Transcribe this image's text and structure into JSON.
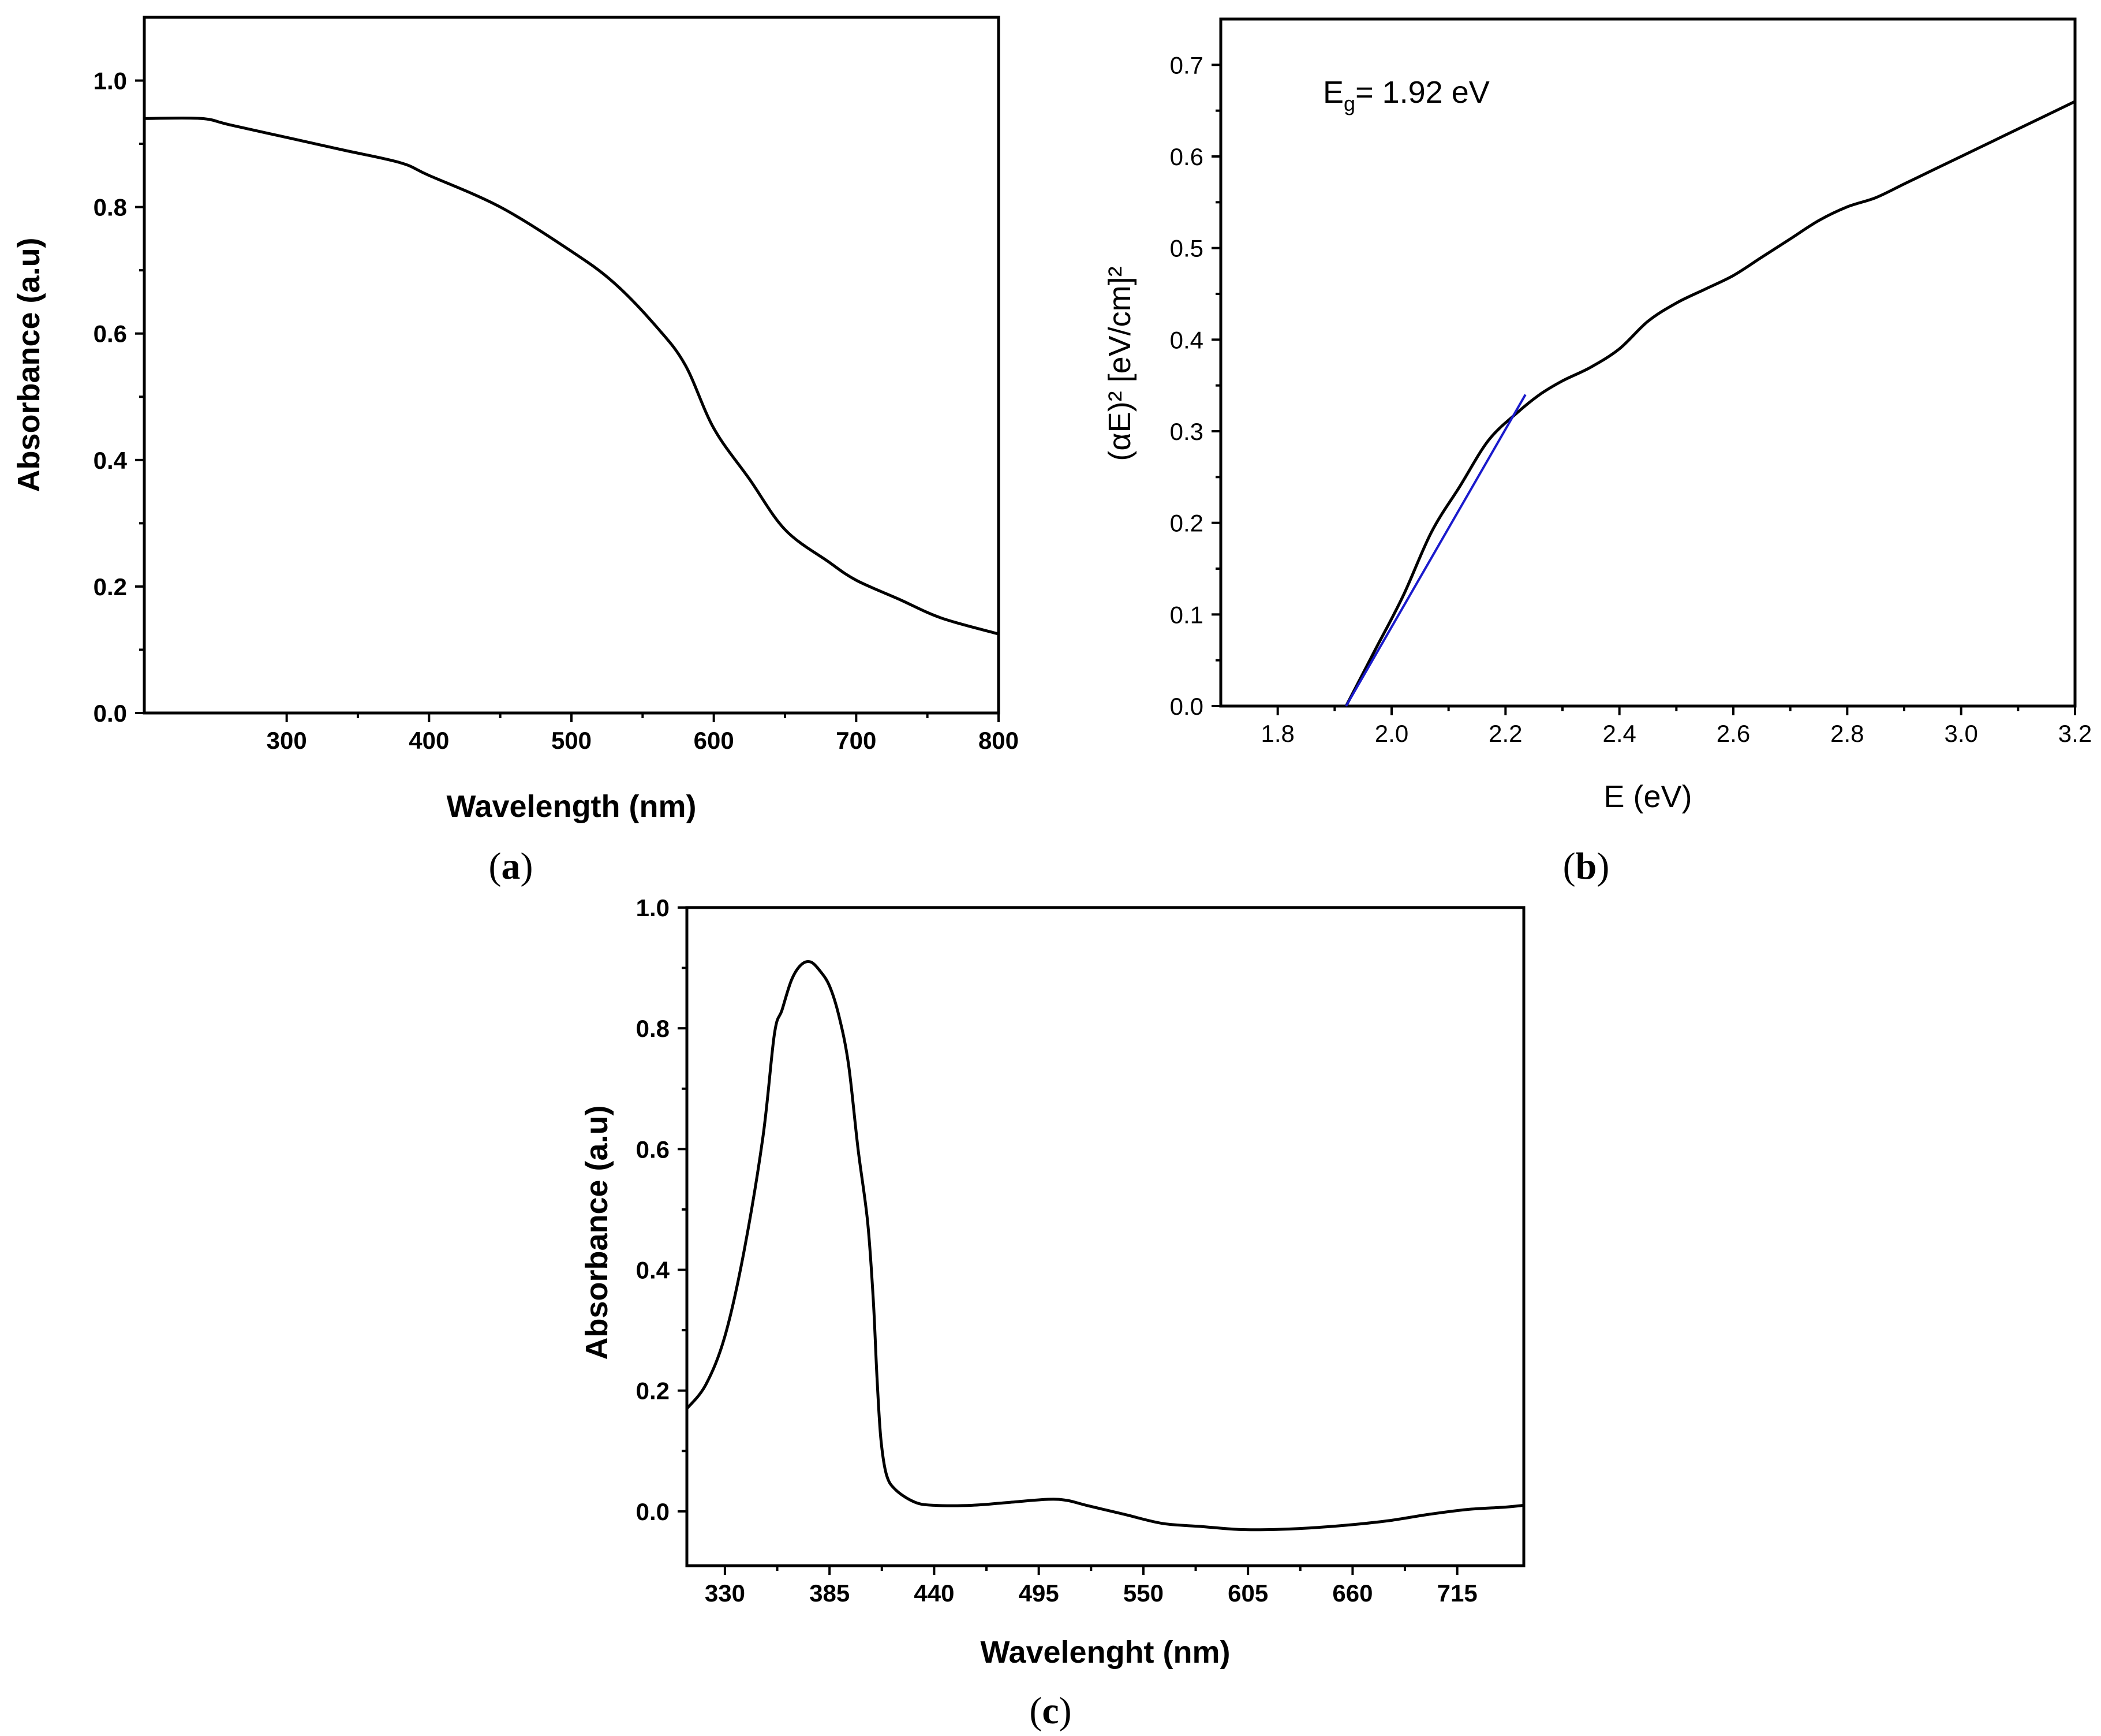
{
  "chart_data": [
    {
      "id": "a",
      "type": "line",
      "panel_label": "(a)",
      "xlabel": "Wavelength (nm)",
      "ylabel": "Absorbance (a.u)",
      "xlim": [
        200,
        800
      ],
      "ylim": [
        0.0,
        1.1
      ],
      "xticks": [
        300,
        400,
        500,
        600,
        700,
        800
      ],
      "yticks": [
        0.0,
        0.2,
        0.4,
        0.6,
        0.8,
        1.0
      ],
      "ytick_labels": [
        "0.0",
        "0.2",
        "0.4",
        "0.6",
        "0.8",
        "1.0"
      ],
      "color": "#000000",
      "x": [
        200,
        240,
        260,
        300,
        340,
        380,
        400,
        450,
        500,
        530,
        560,
        580,
        600,
        625,
        650,
        680,
        700,
        730,
        760,
        800
      ],
      "y": [
        0.94,
        0.94,
        0.93,
        0.91,
        0.89,
        0.87,
        0.85,
        0.8,
        0.73,
        0.68,
        0.61,
        0.55,
        0.45,
        0.37,
        0.29,
        0.24,
        0.21,
        0.18,
        0.15,
        0.125
      ]
    },
    {
      "id": "b",
      "type": "line",
      "panel_label": "(b)",
      "xlabel": "E (eV)",
      "ylabel": "(αE)² [eV/cm]²",
      "annotation": "Eg= 1.92 eV",
      "xlim": [
        1.7,
        3.2
      ],
      "ylim": [
        0.0,
        0.75
      ],
      "xticks": [
        1.8,
        2.0,
        2.2,
        2.4,
        2.6,
        2.8,
        3.0,
        3.2
      ],
      "xtick_labels": [
        "1.8",
        "2.0",
        "2.2",
        "2.4",
        "2.6",
        "2.8",
        "3.0",
        "3.2"
      ],
      "yticks": [
        0.0,
        0.1,
        0.2,
        0.3,
        0.4,
        0.5,
        0.6,
        0.7
      ],
      "ytick_labels": [
        "0.0",
        "0.1",
        "0.2",
        "0.3",
        "0.4",
        "0.5",
        "0.6",
        "0.7"
      ],
      "color": "#000000",
      "fit_color": "#1a1acc",
      "x": [
        1.92,
        1.97,
        2.02,
        2.07,
        2.12,
        2.17,
        2.22,
        2.26,
        2.3,
        2.35,
        2.4,
        2.45,
        2.5,
        2.55,
        2.6,
        2.65,
        2.7,
        2.75,
        2.8,
        2.85,
        2.9,
        2.95,
        3.0,
        3.05,
        3.1,
        3.15,
        3.2
      ],
      "y": [
        0.0,
        0.06,
        0.12,
        0.19,
        0.24,
        0.29,
        0.32,
        0.34,
        0.355,
        0.37,
        0.39,
        0.42,
        0.44,
        0.455,
        0.47,
        0.49,
        0.51,
        0.53,
        0.545,
        0.555,
        0.57,
        0.585,
        0.6,
        0.615,
        0.63,
        0.645,
        0.66
      ],
      "fit_line": {
        "x": [
          1.92,
          2.235
        ],
        "y": [
          0.0,
          0.34
        ]
      }
    },
    {
      "id": "c",
      "type": "line",
      "panel_label": "(c)",
      "xlabel": "Wavelenght (nm)",
      "ylabel": "Absorbance (a.u)",
      "xlim": [
        310,
        750
      ],
      "ylim": [
        -0.09,
        1.0
      ],
      "xticks": [
        330,
        385,
        440,
        495,
        550,
        605,
        660,
        715
      ],
      "yticks": [
        0.0,
        0.2,
        0.4,
        0.6,
        0.8,
        1.0
      ],
      "ytick_labels": [
        "0.0",
        "0.2",
        "0.4",
        "0.6",
        "0.8",
        "1.0"
      ],
      "color": "#000000",
      "x": [
        310,
        320,
        330,
        340,
        350,
        356,
        360,
        365,
        370,
        375,
        380,
        385,
        390,
        395,
        400,
        405,
        408,
        410,
        412,
        415,
        420,
        430,
        440,
        460,
        480,
        500,
        510,
        520,
        540,
        560,
        580,
        600,
        620,
        640,
        660,
        680,
        700,
        720,
        740,
        750
      ],
      "y": [
        0.17,
        0.21,
        0.29,
        0.43,
        0.62,
        0.79,
        0.83,
        0.88,
        0.905,
        0.91,
        0.895,
        0.87,
        0.82,
        0.74,
        0.6,
        0.48,
        0.35,
        0.22,
        0.12,
        0.06,
        0.035,
        0.015,
        0.01,
        0.01,
        0.015,
        0.02,
        0.018,
        0.01,
        -0.005,
        -0.02,
        -0.025,
        -0.03,
        -0.03,
        -0.027,
        -0.022,
        -0.015,
        -0.005,
        0.003,
        0.007,
        0.01
      ]
    }
  ]
}
